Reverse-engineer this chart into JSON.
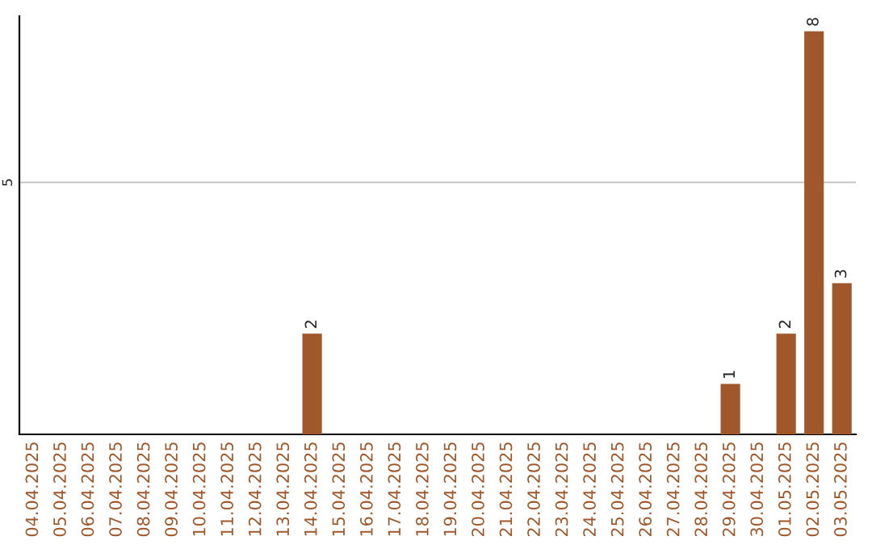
{
  "chart_data": {
    "type": "bar",
    "categories": [
      "04.04.2025",
      "05.04.2025",
      "06.04.2025",
      "07.04.2025",
      "08.04.2025",
      "09.04.2025",
      "10.04.2025",
      "11.04.2025",
      "12.04.2025",
      "13.04.2025",
      "14.04.2025",
      "15.04.2025",
      "16.04.2025",
      "17.04.2025",
      "18.04.2025",
      "19.04.2025",
      "20.04.2025",
      "21.04.2025",
      "22.04.2025",
      "23.04.2025",
      "24.04.2025",
      "25.04.2025",
      "26.04.2025",
      "27.04.2025",
      "28.04.2025",
      "29.04.2025",
      "30.04.2025",
      "01.05.2025",
      "02.05.2025",
      "03.05.2025"
    ],
    "values": [
      0,
      0,
      0,
      0,
      0,
      0,
      0,
      0,
      0,
      0,
      2,
      0,
      0,
      0,
      0,
      0,
      0,
      0,
      0,
      0,
      0,
      0,
      0,
      0,
      0,
      1,
      0,
      2,
      8,
      3
    ],
    "value_labels": [
      null,
      null,
      null,
      null,
      null,
      null,
      null,
      null,
      null,
      null,
      "2",
      null,
      null,
      null,
      null,
      null,
      null,
      null,
      null,
      null,
      null,
      null,
      null,
      null,
      null,
      "1",
      null,
      "2",
      "8",
      "3"
    ],
    "color": "#a0582a",
    "ylim": [
      0,
      8.3
    ],
    "yticks": [
      5
    ],
    "grid": "y",
    "legend": false
  }
}
